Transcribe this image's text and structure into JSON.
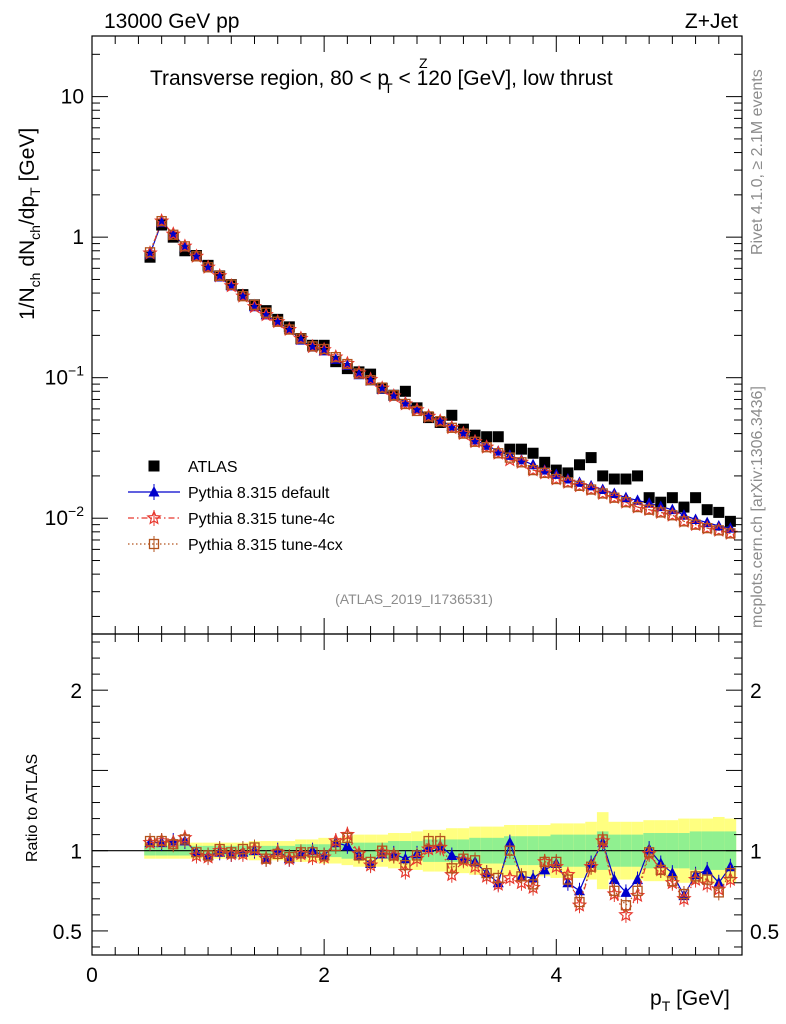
{
  "header": {
    "energy_label": "13000 GeV pp",
    "process_label": "Z+Jet",
    "title": "Transverse region, 80 < p",
    "title_sup": "Z",
    "title_sub": "T",
    "title_end": " < 120 [GeV], low thrust",
    "side_rivet": "Rivet 4.1.0, ≥ 2.1M events",
    "side_mcplots": "mcplots.cern.ch [arXiv:1306.3436]",
    "analysis_id": "(ATLAS_2019_I1736531)"
  },
  "chart_data": [
    {
      "type": "scatter",
      "panel": "main",
      "ylabel": "1/N_ch dN_ch/dp_T [GeV]",
      "yscale": "log",
      "ylim": [
        0.0015,
        27
      ],
      "xlim": [
        0,
        5.6
      ],
      "ytick_labels": [
        "10^-2",
        "10^-1",
        "1",
        "10"
      ],
      "x": [
        0.5,
        0.6,
        0.7,
        0.8,
        0.9,
        1.0,
        1.1,
        1.2,
        1.3,
        1.4,
        1.5,
        1.6,
        1.7,
        1.8,
        1.9,
        2.0,
        2.1,
        2.2,
        2.3,
        2.4,
        2.5,
        2.6,
        2.7,
        2.8,
        2.9,
        3.0,
        3.1,
        3.2,
        3.3,
        3.4,
        3.5,
        3.6,
        3.7,
        3.8,
        3.9,
        4.0,
        4.1,
        4.2,
        4.3,
        4.4,
        4.5,
        4.6,
        4.7,
        4.8,
        4.9,
        5.0,
        5.1,
        5.2,
        5.3,
        5.4,
        5.5
      ],
      "legend": [
        "ATLAS",
        "Pythia 8.315 default",
        "Pythia 8.315 tune-4c",
        "Pythia 8.315 tune-4cx"
      ],
      "series": [
        {
          "name": "ATLAS",
          "color": "#000000",
          "marker": "square",
          "values": [
            0.72,
            1.22,
            1.0,
            0.8,
            0.74,
            0.63,
            0.53,
            0.46,
            0.39,
            0.33,
            0.3,
            0.26,
            0.23,
            0.19,
            0.17,
            0.17,
            0.13,
            0.116,
            0.11,
            0.106,
            0.084,
            0.075,
            0.08,
            0.061,
            0.052,
            0.048,
            0.054,
            0.043,
            0.039,
            0.038,
            0.038,
            0.031,
            0.031,
            0.029,
            0.025,
            0.022,
            0.021,
            0.024,
            0.027,
            0.02,
            0.019,
            0.019,
            0.02,
            0.014,
            0.013,
            0.014,
            0.012,
            0.014,
            0.0115,
            0.011,
            0.0095
          ]
        },
        {
          "name": "Pythia 8.315 default",
          "color": "#0000cc",
          "marker": "triangle",
          "line": "solid",
          "values": [
            0.76,
            1.27,
            1.06,
            0.85,
            0.74,
            0.61,
            0.52,
            0.45,
            0.38,
            0.32,
            0.28,
            0.25,
            0.22,
            0.185,
            0.165,
            0.155,
            0.135,
            0.122,
            0.105,
            0.095,
            0.083,
            0.074,
            0.067,
            0.06,
            0.054,
            0.05,
            0.045,
            0.041,
            0.036,
            0.033,
            0.03,
            0.028,
            0.026,
            0.024,
            0.022,
            0.0205,
            0.019,
            0.018,
            0.017,
            0.016,
            0.015,
            0.014,
            0.0134,
            0.0128,
            0.0121,
            0.0115,
            0.0105,
            0.0098,
            0.0093,
            0.0088,
            0.0085
          ]
        },
        {
          "name": "Pythia 8.315 tune-4c",
          "color": "#e8382e",
          "marker": "star",
          "line": "dashdot",
          "values": [
            0.77,
            1.3,
            1.05,
            0.86,
            0.73,
            0.61,
            0.53,
            0.45,
            0.38,
            0.32,
            0.28,
            0.25,
            0.22,
            0.19,
            0.166,
            0.158,
            0.14,
            0.126,
            0.108,
            0.097,
            0.084,
            0.074,
            0.065,
            0.059,
            0.053,
            0.049,
            0.044,
            0.04,
            0.035,
            0.032,
            0.029,
            0.026,
            0.025,
            0.022,
            0.021,
            0.019,
            0.018,
            0.017,
            0.016,
            0.015,
            0.014,
            0.013,
            0.012,
            0.0115,
            0.011,
            0.0105,
            0.0095,
            0.009,
            0.0085,
            0.0082,
            0.0078
          ]
        },
        {
          "name": "Pythia 8.315 tune-4cx",
          "color": "#b3531d",
          "marker": "open-square",
          "line": "dotted",
          "values": [
            0.78,
            1.3,
            1.04,
            0.86,
            0.73,
            0.61,
            0.53,
            0.46,
            0.38,
            0.33,
            0.29,
            0.25,
            0.22,
            0.19,
            0.167,
            0.16,
            0.14,
            0.125,
            0.107,
            0.096,
            0.085,
            0.075,
            0.065,
            0.058,
            0.053,
            0.049,
            0.044,
            0.04,
            0.035,
            0.032,
            0.029,
            0.027,
            0.025,
            0.022,
            0.021,
            0.019,
            0.018,
            0.017,
            0.016,
            0.015,
            0.014,
            0.013,
            0.012,
            0.0115,
            0.011,
            0.0105,
            0.0095,
            0.009,
            0.0085,
            0.0082,
            0.0078
          ]
        }
      ]
    },
    {
      "type": "line",
      "panel": "ratio",
      "ylabel": "Ratio to ATLAS",
      "ylim": [
        0.35,
        2.35
      ],
      "xlim": [
        0,
        5.6
      ],
      "xlabel": "p_T [GeV]",
      "xtick_labels": [
        "0",
        "2",
        "4"
      ],
      "ytick_labels": [
        "0.5",
        "1",
        "2"
      ],
      "x": [
        0.5,
        0.6,
        0.7,
        0.8,
        0.9,
        1.0,
        1.1,
        1.2,
        1.3,
        1.4,
        1.5,
        1.6,
        1.7,
        1.8,
        1.9,
        2.0,
        2.1,
        2.2,
        2.3,
        2.4,
        2.5,
        2.6,
        2.7,
        2.8,
        2.9,
        3.0,
        3.1,
        3.2,
        3.3,
        3.4,
        3.5,
        3.6,
        3.7,
        3.8,
        3.9,
        4.0,
        4.1,
        4.2,
        4.3,
        4.4,
        4.5,
        4.6,
        4.7,
        4.8,
        4.9,
        5.0,
        5.1,
        5.2,
        5.3,
        5.4,
        5.5
      ],
      "band_inner": [
        0.03,
        0.03,
        0.03,
        0.03,
        0.03,
        0.03,
        0.03,
        0.03,
        0.03,
        0.03,
        0.03,
        0.03,
        0.03,
        0.04,
        0.04,
        0.04,
        0.04,
        0.05,
        0.05,
        0.05,
        0.05,
        0.06,
        0.06,
        0.06,
        0.07,
        0.07,
        0.07,
        0.07,
        0.08,
        0.08,
        0.08,
        0.09,
        0.09,
        0.09,
        0.09,
        0.1,
        0.1,
        0.1,
        0.1,
        0.12,
        0.1,
        0.1,
        0.1,
        0.11,
        0.11,
        0.11,
        0.11,
        0.12,
        0.12,
        0.12,
        0.12
      ],
      "band_outer": [
        0.05,
        0.05,
        0.05,
        0.05,
        0.05,
        0.05,
        0.05,
        0.05,
        0.05,
        0.06,
        0.06,
        0.06,
        0.06,
        0.07,
        0.07,
        0.08,
        0.08,
        0.09,
        0.1,
        0.1,
        0.1,
        0.11,
        0.11,
        0.12,
        0.13,
        0.13,
        0.14,
        0.14,
        0.15,
        0.15,
        0.15,
        0.16,
        0.16,
        0.16,
        0.16,
        0.17,
        0.17,
        0.17,
        0.18,
        0.24,
        0.18,
        0.18,
        0.18,
        0.19,
        0.19,
        0.19,
        0.2,
        0.2,
        0.2,
        0.21,
        0.2
      ],
      "series": [
        {
          "name": "Pythia 8.315 default",
          "color": "#0000cc",
          "marker": "triangle",
          "values": [
            1.05,
            1.05,
            1.06,
            1.06,
            0.99,
            0.97,
            0.99,
            0.98,
            0.99,
            1.0,
            0.95,
            1.0,
            0.95,
            0.98,
            1.0,
            0.97,
            1.05,
            1.03,
            0.97,
            0.92,
            0.98,
            0.98,
            0.95,
            0.98,
            1.02,
            1.03,
            0.97,
            0.95,
            0.93,
            0.86,
            0.8,
            1.05,
            0.84,
            0.83,
            0.88,
            0.92,
            0.8,
            0.75,
            0.92,
            1.05,
            0.82,
            0.74,
            0.82,
            1.01,
            0.92,
            0.86,
            0.72,
            0.85,
            0.88,
            0.8,
            0.9
          ]
        },
        {
          "name": "Pythia 8.315 tune-4c",
          "color": "#e8382e",
          "marker": "star",
          "values": [
            1.05,
            1.06,
            1.05,
            1.08,
            0.97,
            0.96,
            1.0,
            0.98,
            0.98,
            1.01,
            0.95,
            0.99,
            0.95,
            0.98,
            0.96,
            0.96,
            1.06,
            1.1,
            0.98,
            0.91,
            0.99,
            0.97,
            0.87,
            0.95,
            1.01,
            1.02,
            0.85,
            0.94,
            0.9,
            0.84,
            0.79,
            0.83,
            0.8,
            0.77,
            0.93,
            0.9,
            0.85,
            0.66,
            0.9,
            1.06,
            0.73,
            0.6,
            0.72,
            0.98,
            0.88,
            0.8,
            0.7,
            0.82,
            0.79,
            0.76,
            0.82
          ]
        },
        {
          "name": "Pythia 8.315 tune-4cx",
          "color": "#b3531d",
          "marker": "open-square",
          "values": [
            1.06,
            1.06,
            1.04,
            1.07,
            0.99,
            0.97,
            1.01,
            0.99,
            1.01,
            1.02,
            0.95,
            0.98,
            0.96,
            0.99,
            0.99,
            0.97,
            1.03,
            1.08,
            0.97,
            0.93,
            1.0,
            0.97,
            0.91,
            0.97,
            1.06,
            1.06,
            0.89,
            0.95,
            0.94,
            0.86,
            0.83,
            1.0,
            0.84,
            0.79,
            0.93,
            0.93,
            0.82,
            0.68,
            0.9,
            1.07,
            0.75,
            0.66,
            0.75,
            0.99,
            0.88,
            0.81,
            0.73,
            0.84,
            0.82,
            0.74,
            0.86
          ]
        }
      ]
    }
  ]
}
